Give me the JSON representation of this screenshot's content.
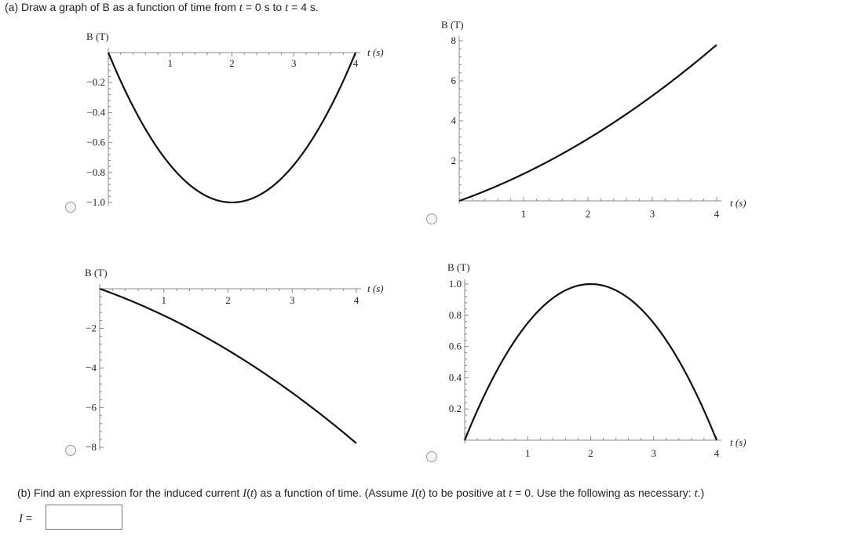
{
  "question": {
    "part_a_prefix": "(a) Draw a graph of B as a function of time from ",
    "part_a_t1": "t",
    "part_a_eq1": " = 0 s to ",
    "part_a_t2": "t",
    "part_a_eq2": " = 4 s.",
    "part_b_prefix": "(b) Find an expression for the induced current ",
    "part_b_I1": "I",
    "part_b_mid1": "(",
    "part_b_t1": "t",
    "part_b_mid2": ") as a function of time. (Assume ",
    "part_b_I2": "I",
    "part_b_mid3": "(",
    "part_b_t2": "t",
    "part_b_mid4": ") to be positive at  ",
    "part_b_t3": "t",
    "part_b_mid5": " = 0.  Use the following as necessary: ",
    "part_b_t4": "t",
    "part_b_end": ".)",
    "answer_var": "I",
    "answer_eq": " =",
    "answer_value": ""
  },
  "chart_data": [
    {
      "type": "line",
      "option": 1,
      "selected": false,
      "ylabel": "B (T)",
      "xlabel": "t (s)",
      "xlim": [
        0,
        4
      ],
      "ylim": [
        -1.0,
        0
      ],
      "x_ticks": [
        "1",
        "2",
        "3",
        "4"
      ],
      "y_ticks": [
        "-0.2",
        "-0.4",
        "-0.6",
        "-0.8",
        "-1.0"
      ],
      "x_tick_values": [
        1,
        2,
        3,
        4
      ],
      "y_tick_values": [
        -0.2,
        -0.4,
        -0.6,
        -0.8,
        -1.0
      ],
      "series": [
        {
          "x": [
            0,
            0.5,
            1,
            1.5,
            2,
            2.5,
            3,
            3.5,
            4
          ],
          "y": [
            0,
            -0.4375,
            -0.75,
            -0.9375,
            -1.0,
            -0.9375,
            -0.75,
            -0.4375,
            0
          ]
        }
      ]
    },
    {
      "type": "line",
      "option": 2,
      "selected": false,
      "ylabel": "B (T)",
      "xlabel": "t (s)",
      "xlim": [
        0,
        4
      ],
      "ylim": [
        0,
        8
      ],
      "x_ticks": [
        "1",
        "2",
        "3",
        "4"
      ],
      "y_ticks": [
        "2",
        "4",
        "6",
        "8"
      ],
      "x_tick_values": [
        1,
        2,
        3,
        4
      ],
      "y_tick_values": [
        2,
        4,
        6,
        8
      ],
      "series": [
        {
          "x": [
            0,
            0.5,
            1,
            1.5,
            2,
            2.5,
            3,
            3.5,
            4
          ],
          "y": [
            0,
            0.625,
            1.35,
            2.175,
            3.1,
            4.125,
            5.25,
            6.475,
            7.8
          ]
        }
      ]
    },
    {
      "type": "line",
      "option": 3,
      "selected": false,
      "ylabel": "B (T)",
      "xlabel": "t (s)",
      "xlim": [
        0,
        4
      ],
      "ylim": [
        -8,
        0
      ],
      "x_ticks": [
        "1",
        "2",
        "3",
        "4"
      ],
      "y_ticks": [
        "-2",
        "-4",
        "-6",
        "-8"
      ],
      "x_tick_values": [
        1,
        2,
        3,
        4
      ],
      "y_tick_values": [
        -2,
        -4,
        -6,
        -8
      ],
      "series": [
        {
          "x": [
            0,
            0.5,
            1,
            1.5,
            2,
            2.5,
            3,
            3.5,
            4
          ],
          "y": [
            0,
            -0.625,
            -1.35,
            -2.175,
            -3.1,
            -4.125,
            -5.25,
            -6.475,
            -7.8
          ]
        }
      ]
    },
    {
      "type": "line",
      "option": 4,
      "selected": false,
      "ylabel": "B (T)",
      "xlabel": "t (s)",
      "xlim": [
        0,
        4
      ],
      "ylim": [
        0,
        1.0
      ],
      "x_ticks": [
        "1",
        "2",
        "3",
        "4"
      ],
      "y_ticks": [
        "0.2",
        "0.4",
        "0.6",
        "0.8",
        "1.0"
      ],
      "x_tick_values": [
        1,
        2,
        3,
        4
      ],
      "y_tick_values": [
        0.2,
        0.4,
        0.6,
        0.8,
        1.0
      ],
      "series": [
        {
          "x": [
            0,
            0.5,
            1,
            1.5,
            2,
            2.5,
            3,
            3.5,
            4
          ],
          "y": [
            0,
            0.4375,
            0.75,
            0.9375,
            1.0,
            0.9375,
            0.75,
            0.4375,
            0
          ]
        }
      ]
    }
  ]
}
